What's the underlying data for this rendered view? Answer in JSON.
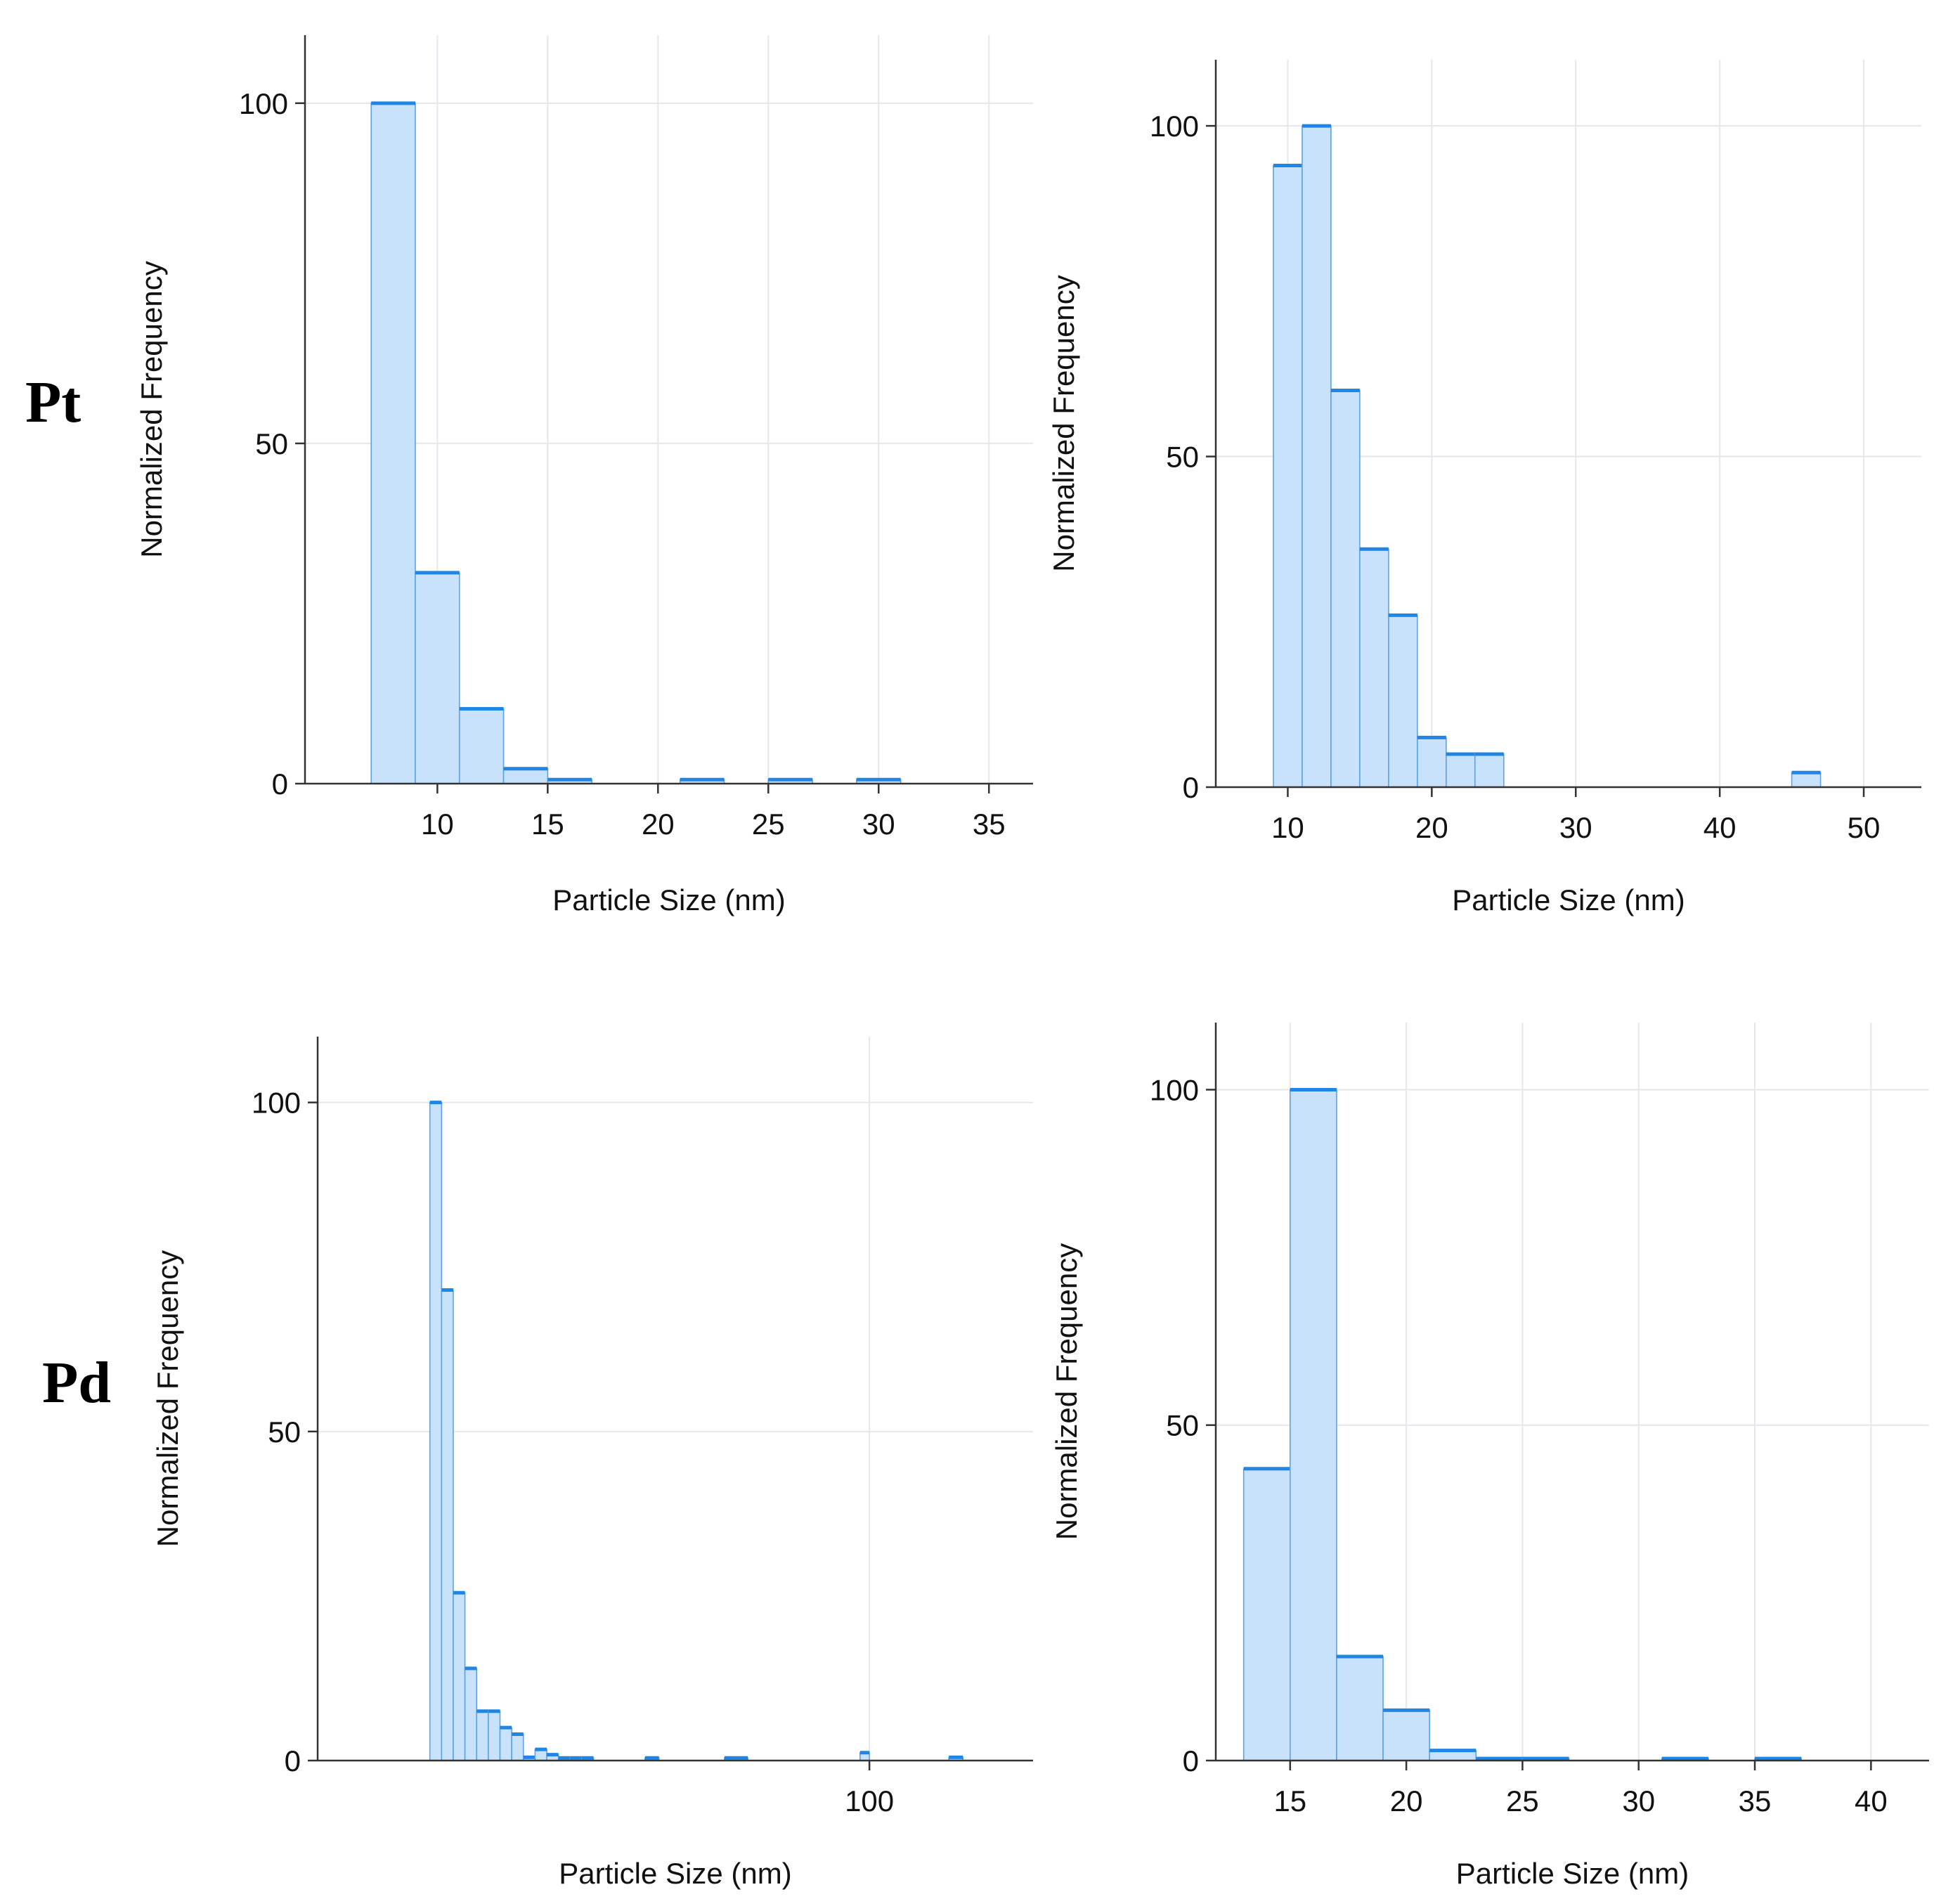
{
  "row_labels": [
    "Pt",
    "Pd"
  ],
  "colors": {
    "bar_fill": "#c9e2fb",
    "bar_edge": "#5aa3e8",
    "cap": "#1f86e6",
    "grid": "#e6e6ec"
  },
  "chart_data": [
    {
      "type": "bar",
      "id": "pt-left",
      "row": "Pt",
      "xlabel": "Particle Size (nm)",
      "ylabel": "Normalized Frequency",
      "xlim": [
        4,
        37
      ],
      "ylim": [
        0,
        110
      ],
      "xticks": [
        10,
        15,
        20,
        25,
        30,
        35
      ],
      "yticks": [
        0,
        50,
        100
      ],
      "bars": [
        {
          "x0": 7,
          "x1": 9,
          "y": 100
        },
        {
          "x0": 9,
          "x1": 11,
          "y": 31
        },
        {
          "x0": 11,
          "x1": 13,
          "y": 11
        },
        {
          "x0": 13,
          "x1": 15,
          "y": 2.2
        },
        {
          "x0": 15,
          "x1": 17,
          "y": 0.6
        },
        {
          "x0": 21,
          "x1": 23,
          "y": 0.6
        },
        {
          "x0": 25,
          "x1": 27,
          "y": 0.6
        },
        {
          "x0": 29,
          "x1": 31,
          "y": 0.6
        }
      ]
    },
    {
      "type": "bar",
      "id": "pt-right",
      "row": "Pt",
      "xlabel": "Particle Size (nm)",
      "ylabel": "Normalized Frequency",
      "xlim": [
        5,
        54
      ],
      "ylim": [
        0,
        110
      ],
      "xticks": [
        10,
        20,
        30,
        40,
        50
      ],
      "yticks": [
        0,
        50,
        100
      ],
      "bars": [
        {
          "x0": 9,
          "x1": 11,
          "y": 94
        },
        {
          "x0": 11,
          "x1": 13,
          "y": 100
        },
        {
          "x0": 13,
          "x1": 15,
          "y": 60
        },
        {
          "x0": 15,
          "x1": 17,
          "y": 36
        },
        {
          "x0": 17,
          "x1": 19,
          "y": 26
        },
        {
          "x0": 19,
          "x1": 21,
          "y": 7.5
        },
        {
          "x0": 21,
          "x1": 23,
          "y": 5
        },
        {
          "x0": 23,
          "x1": 25,
          "y": 5
        },
        {
          "x0": 45,
          "x1": 47,
          "y": 2.2
        }
      ]
    },
    {
      "type": "bar",
      "id": "pd-left",
      "row": "Pd",
      "xlabel": "Particle Size (nm)",
      "ylabel": "Normalized Frequency",
      "xlim": [
        -18,
        135
      ],
      "ylim": [
        0,
        110
      ],
      "xticks": [
        100
      ],
      "yticks": [
        0,
        50,
        100
      ],
      "bars": [
        {
          "x0": 6,
          "x1": 8.5,
          "y": 100
        },
        {
          "x0": 8.5,
          "x1": 11,
          "y": 71.5
        },
        {
          "x0": 11,
          "x1": 13.5,
          "y": 25.5
        },
        {
          "x0": 13.5,
          "x1": 16,
          "y": 14
        },
        {
          "x0": 16,
          "x1": 18.5,
          "y": 7.5
        },
        {
          "x0": 18.5,
          "x1": 21,
          "y": 7.5
        },
        {
          "x0": 21,
          "x1": 23.5,
          "y": 5
        },
        {
          "x0": 23.5,
          "x1": 26,
          "y": 4
        },
        {
          "x0": 26,
          "x1": 28.5,
          "y": 0.5
        },
        {
          "x0": 28.5,
          "x1": 31,
          "y": 1.7
        },
        {
          "x0": 31,
          "x1": 33.5,
          "y": 0.9
        },
        {
          "x0": 33.5,
          "x1": 36,
          "y": 0.4
        },
        {
          "x0": 36,
          "x1": 38.5,
          "y": 0.4
        },
        {
          "x0": 38.5,
          "x1": 41,
          "y": 0.4
        },
        {
          "x0": 52,
          "x1": 55,
          "y": 0.4
        },
        {
          "x0": 69,
          "x1": 74,
          "y": 0.4
        },
        {
          "x0": 98,
          "x1": 100,
          "y": 1.2
        },
        {
          "x0": 117,
          "x1": 120,
          "y": 0.5
        }
      ]
    },
    {
      "type": "bar",
      "id": "pd-right",
      "row": "Pd",
      "xlabel": "Particle Size (nm)",
      "ylabel": "Normalized Frequency",
      "xlim": [
        11.8,
        42.5
      ],
      "ylim": [
        0,
        110
      ],
      "xticks": [
        15,
        20,
        25,
        30,
        35,
        40
      ],
      "yticks": [
        0,
        50,
        100
      ],
      "bars": [
        {
          "x0": 13,
          "x1": 15,
          "y": 43.5
        },
        {
          "x0": 15,
          "x1": 17,
          "y": 100
        },
        {
          "x0": 17,
          "x1": 19,
          "y": 15.5
        },
        {
          "x0": 19,
          "x1": 21,
          "y": 7.5
        },
        {
          "x0": 21,
          "x1": 23,
          "y": 1.5
        },
        {
          "x0": 23,
          "x1": 25,
          "y": 0.3
        },
        {
          "x0": 25,
          "x1": 27,
          "y": 0.3
        },
        {
          "x0": 31,
          "x1": 33,
          "y": 0.3
        },
        {
          "x0": 35,
          "x1": 37,
          "y": 0.3
        }
      ]
    }
  ]
}
